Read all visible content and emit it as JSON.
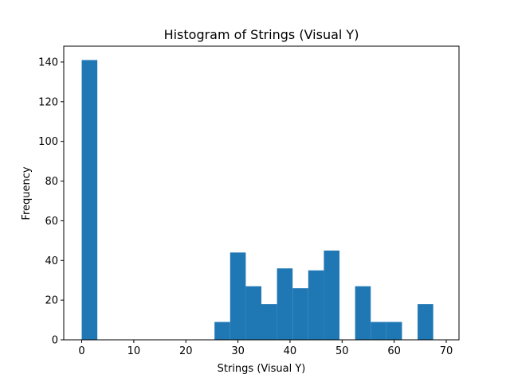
{
  "chart_data": {
    "type": "bar",
    "title": "Histogram of Strings (Visual Y)",
    "xlabel": "Strings (Visual Y)",
    "ylabel": "Frequency",
    "color": "#1f77b4",
    "xlim": [
      -3.45,
      72.45
    ],
    "ylim": [
      0,
      148
    ],
    "xticks": [
      0,
      10,
      20,
      30,
      40,
      50,
      60,
      70
    ],
    "yticks": [
      0,
      20,
      40,
      60,
      80,
      100,
      120,
      140
    ],
    "grid": false,
    "bins": [
      {
        "x0": 0.0,
        "x1": 3.0,
        "count": 141
      },
      {
        "x0": 25.5,
        "x1": 28.5,
        "count": 9
      },
      {
        "x0": 28.5,
        "x1": 31.5,
        "count": 44
      },
      {
        "x0": 31.5,
        "x1": 34.5,
        "count": 27
      },
      {
        "x0": 34.5,
        "x1": 37.5,
        "count": 18
      },
      {
        "x0": 37.5,
        "x1": 40.5,
        "count": 36
      },
      {
        "x0": 40.5,
        "x1": 43.5,
        "count": 26
      },
      {
        "x0": 43.5,
        "x1": 46.5,
        "count": 35
      },
      {
        "x0": 46.5,
        "x1": 49.5,
        "count": 45
      },
      {
        "x0": 52.5,
        "x1": 55.5,
        "count": 27
      },
      {
        "x0": 55.5,
        "x1": 58.5,
        "count": 9
      },
      {
        "x0": 58.5,
        "x1": 61.5,
        "count": 9
      },
      {
        "x0": 64.5,
        "x1": 67.5,
        "count": 18
      }
    ]
  }
}
